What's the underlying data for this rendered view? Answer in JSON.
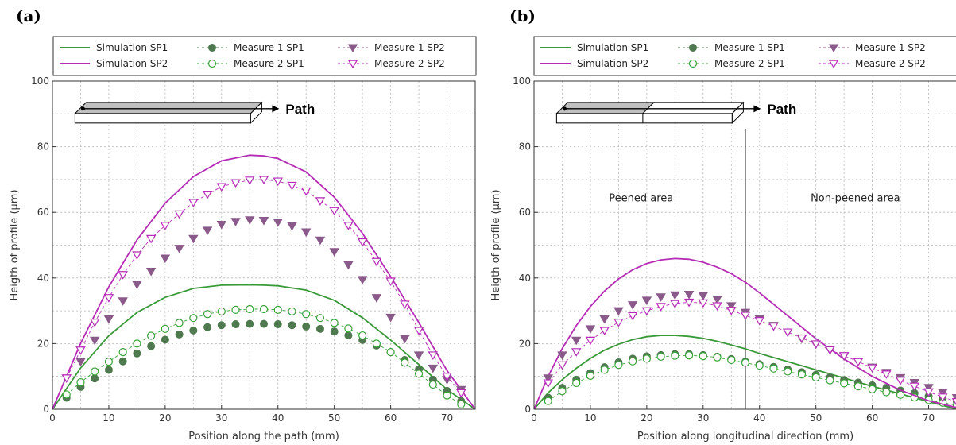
{
  "colors": {
    "sp1_line": "#3a9a3a",
    "sp1_m1": "#4f7a4f",
    "sp1_m2": "#3aa23a",
    "sp2_line": "#b62bb6",
    "sp2_m1": "#8a5a8a",
    "sp2_m2": "#b62bb6",
    "grid": "#b8b8b8",
    "axis": "#333333"
  },
  "legend": {
    "labels": [
      "Simulation SP1",
      "Measure 1 SP1",
      "Measure 1 SP2",
      "Simulation SP2",
      "Measure 2 SP1",
      "Measure 2 SP2"
    ]
  },
  "chart_data": [
    {
      "panel_label": "(a)",
      "type": "line",
      "xlabel": "Position along the path (mm)",
      "ylabel": "Heigth of profile (µm)",
      "xlim": [
        0,
        75
      ],
      "ylim": [
        0,
        100
      ],
      "xticks": [
        0,
        10,
        20,
        30,
        40,
        50,
        60,
        70
      ],
      "yticks": [
        0,
        20,
        40,
        60,
        80,
        100
      ],
      "grid": true,
      "legend_position": "top, above plot",
      "inset_label": "Path",
      "series": [
        {
          "name": "Simulation SP1",
          "style": "line",
          "x": [
            0,
            5,
            10,
            15,
            20,
            25,
            30,
            35,
            37.5,
            40,
            45,
            50,
            55,
            60,
            65,
            70,
            75
          ],
          "y": [
            0,
            12.6,
            22.4,
            29.5,
            34.1,
            36.8,
            37.8,
            37.9,
            37.8,
            37.6,
            36.3,
            33.2,
            27.9,
            21.1,
            13.6,
            6.0,
            0
          ]
        },
        {
          "name": "Measure 1 SP1",
          "style": "filled-circle",
          "x": [
            2.5,
            5,
            7.5,
            10,
            12.5,
            15,
            17.5,
            20,
            22.5,
            25,
            27.5,
            30,
            32.5,
            35,
            37.5,
            40,
            42.5,
            45,
            47.5,
            50,
            52.5,
            55,
            57.5,
            60,
            62.5,
            65,
            67.5,
            70,
            72.5
          ],
          "y": [
            3.5,
            6.8,
            9.4,
            12,
            14.6,
            17,
            19.2,
            21.2,
            22.8,
            24,
            25,
            25.6,
            25.9,
            26,
            26,
            25.9,
            25.6,
            25.2,
            24.5,
            23.7,
            22.5,
            21.1,
            19.4,
            17.4,
            15,
            12.2,
            9,
            5.6,
            2.5
          ]
        },
        {
          "name": "Measure 2 SP1",
          "style": "open-circle",
          "x": [
            2.5,
            5,
            7.5,
            10,
            12.5,
            15,
            17.5,
            20,
            22.5,
            25,
            27.5,
            30,
            32.5,
            35,
            37.5,
            40,
            42.5,
            45,
            47.5,
            50,
            52.5,
            55,
            57.5,
            60,
            62.5,
            65,
            67.5,
            70,
            72.5
          ],
          "y": [
            4.5,
            8.2,
            11.5,
            14.5,
            17.4,
            20,
            22.4,
            24.5,
            26.3,
            27.8,
            29,
            29.8,
            30.3,
            30.5,
            30.5,
            30.3,
            29.8,
            29,
            27.8,
            26.3,
            24.6,
            22.5,
            20,
            17.4,
            14.2,
            10.8,
            7.5,
            4.2,
            1.5
          ]
        },
        {
          "name": "Simulation SP2",
          "style": "line",
          "x": [
            0,
            5,
            10,
            15,
            20,
            25,
            30,
            35,
            37.5,
            40,
            45,
            50,
            55,
            60,
            65,
            70,
            75
          ],
          "y": [
            0,
            20.1,
            37.3,
            51.6,
            62.8,
            70.9,
            75.7,
            77.4,
            77.2,
            76.4,
            72.3,
            64.6,
            53.6,
            40.4,
            26.4,
            11.8,
            0
          ]
        },
        {
          "name": "Measure 1 SP2",
          "style": "filled-triangle-down",
          "x": [
            2.5,
            5,
            7.5,
            10,
            12.5,
            15,
            17.5,
            20,
            22.5,
            25,
            27.5,
            30,
            32.5,
            35,
            37.5,
            40,
            42.5,
            45,
            47.5,
            50,
            52.5,
            55,
            57.5,
            60,
            62.5,
            65,
            67.5,
            70,
            72.5
          ],
          "y": [
            9.5,
            14.5,
            21,
            27.5,
            33,
            38,
            42,
            46,
            49,
            52,
            54.5,
            56.3,
            57.2,
            57.7,
            57.5,
            57,
            55.8,
            54,
            51.5,
            48,
            44,
            39.5,
            34,
            28,
            21.5,
            16.5,
            12.5,
            9,
            6
          ]
        },
        {
          "name": "Measure 2 SP2",
          "style": "open-triangle-down",
          "x": [
            2.5,
            5,
            7.5,
            10,
            12.5,
            15,
            17.5,
            20,
            22.5,
            25,
            27.5,
            30,
            32.5,
            35,
            37.5,
            40,
            42.5,
            45,
            47.5,
            50,
            52.5,
            55,
            57.5,
            60,
            62.5,
            65,
            67.5,
            70,
            72.5
          ],
          "y": [
            9.5,
            18,
            26.5,
            34,
            41,
            47,
            52,
            56,
            59.5,
            63,
            65.5,
            67.8,
            69,
            69.8,
            70,
            69.5,
            68.2,
            66.5,
            63.5,
            60.5,
            56,
            51,
            45,
            39,
            32,
            24,
            16.5,
            10,
            5
          ]
        }
      ]
    },
    {
      "panel_label": "(b)",
      "type": "line",
      "xlabel": "Position along longitudinal direction (mm)",
      "ylabel": "Heigth of profile (µm)",
      "xlim": [
        0,
        75
      ],
      "ylim": [
        0,
        100
      ],
      "xticks": [
        0,
        10,
        20,
        30,
        40,
        50,
        60,
        70
      ],
      "yticks": [
        0,
        20,
        40,
        60,
        80,
        100
      ],
      "grid": true,
      "legend_position": "top, above plot",
      "inset_label": "Path",
      "divider_x": 37.5,
      "annotations": [
        "Peened area",
        "Non-peened area"
      ],
      "series": [
        {
          "name": "Simulation SP1",
          "style": "line",
          "x": [
            0,
            2.5,
            5,
            7.5,
            10,
            12.5,
            15,
            17.5,
            20,
            22.5,
            25,
            27.5,
            30,
            32.5,
            35,
            37.5,
            40,
            45,
            50,
            55,
            60,
            65,
            70,
            75
          ],
          "y": [
            0,
            5,
            9,
            12.5,
            15.5,
            18,
            19.8,
            21.2,
            22.1,
            22.5,
            22.5,
            22.2,
            21.6,
            20.7,
            19.6,
            18.4,
            17,
            14.5,
            12,
            9.5,
            7,
            4.7,
            2.3,
            0
          ]
        },
        {
          "name": "Measure 1 SP1",
          "style": "filled-circle",
          "x": [
            2.5,
            5,
            7.5,
            10,
            12.5,
            15,
            17.5,
            20,
            22.5,
            25,
            27.5,
            30,
            32.5,
            35,
            37.5,
            40,
            42.5,
            45,
            47.5,
            50,
            52.5,
            55,
            57.5,
            60,
            62.5,
            65,
            67.5,
            70,
            72.5,
            75
          ],
          "y": [
            3.5,
            6.5,
            9,
            11,
            12.8,
            14.3,
            15.4,
            16.1,
            16.5,
            16.8,
            16.8,
            16.5,
            16,
            15.3,
            14.5,
            13.7,
            12.9,
            12.1,
            11.3,
            10.5,
            9.7,
            8.9,
            8.1,
            7.3,
            6.5,
            5.7,
            4.9,
            4,
            3.2,
            2.3
          ]
        },
        {
          "name": "Measure 2 SP1",
          "style": "open-circle",
          "x": [
            2.5,
            5,
            7.5,
            10,
            12.5,
            15,
            17.5,
            20,
            22.5,
            25,
            27.5,
            30,
            32.5,
            35,
            37.5,
            40,
            42.5,
            45,
            47.5,
            50,
            52.5,
            55,
            57.5,
            60,
            62.5,
            65,
            67.5,
            70,
            72.5,
            75
          ],
          "y": [
            2.5,
            5.5,
            8,
            10.2,
            12,
            13.5,
            14.6,
            15.4,
            16,
            16.3,
            16.4,
            16.2,
            15.8,
            15,
            14.2,
            13.3,
            12.4,
            11.5,
            10.6,
            9.7,
            8.8,
            7.9,
            7,
            6.1,
            5.2,
            4.4,
            3.6,
            2.8,
            2,
            1.2
          ]
        },
        {
          "name": "Simulation SP2",
          "style": "line",
          "x": [
            0,
            2.5,
            5,
            7.5,
            10,
            12.5,
            15,
            17.5,
            20,
            22.5,
            25,
            27.5,
            30,
            32.5,
            35,
            37.5,
            40,
            45,
            50,
            55,
            60,
            65,
            70,
            75
          ],
          "y": [
            0,
            10,
            18.5,
            25.5,
            31.3,
            36,
            39.7,
            42.5,
            44.4,
            45.5,
            45.9,
            45.7,
            44.8,
            43.3,
            41.3,
            38.7,
            35.5,
            28.5,
            21.5,
            15.3,
            10,
            5.8,
            2.6,
            0.5
          ]
        },
        {
          "name": "Measure 1 SP2",
          "style": "filled-triangle-down",
          "x": [
            2.5,
            5,
            7.5,
            10,
            12.5,
            15,
            17.5,
            20,
            22.5,
            25,
            27.5,
            30,
            32.5,
            35,
            37.5,
            40,
            42.5,
            45,
            47.5,
            50,
            52.5,
            55,
            57.5,
            60,
            62.5,
            65,
            67.5,
            70,
            72.5,
            75
          ],
          "y": [
            9.5,
            16.5,
            21,
            24.5,
            27.5,
            30,
            31.8,
            33.2,
            34.2,
            34.8,
            35,
            34.6,
            33.5,
            31.5,
            29.5,
            27.5,
            25.5,
            23.5,
            21.5,
            19.8,
            18,
            16.2,
            14.5,
            12.8,
            11.2,
            9.6,
            8.1,
            6.6,
            5.1,
            3.5
          ]
        },
        {
          "name": "Measure 2 SP2",
          "style": "open-triangle-down",
          "x": [
            2.5,
            5,
            7.5,
            10,
            12.5,
            15,
            17.5,
            20,
            22.5,
            25,
            27.5,
            30,
            32.5,
            35,
            37.5,
            40,
            42.5,
            45,
            47.5,
            50,
            52.5,
            55,
            57.5,
            60,
            62.5,
            65,
            67.5,
            70,
            72.5,
            75
          ],
          "y": [
            8,
            13.5,
            17.5,
            21,
            24,
            26.5,
            28.5,
            30,
            31.3,
            32.2,
            32.6,
            32.4,
            31.5,
            30.1,
            28.6,
            27,
            25.3,
            23.5,
            21.7,
            19.9,
            18.1,
            16.3,
            14.5,
            12.6,
            10.7,
            8.8,
            7,
            5.3,
            3.7,
            2.3
          ]
        }
      ]
    }
  ]
}
